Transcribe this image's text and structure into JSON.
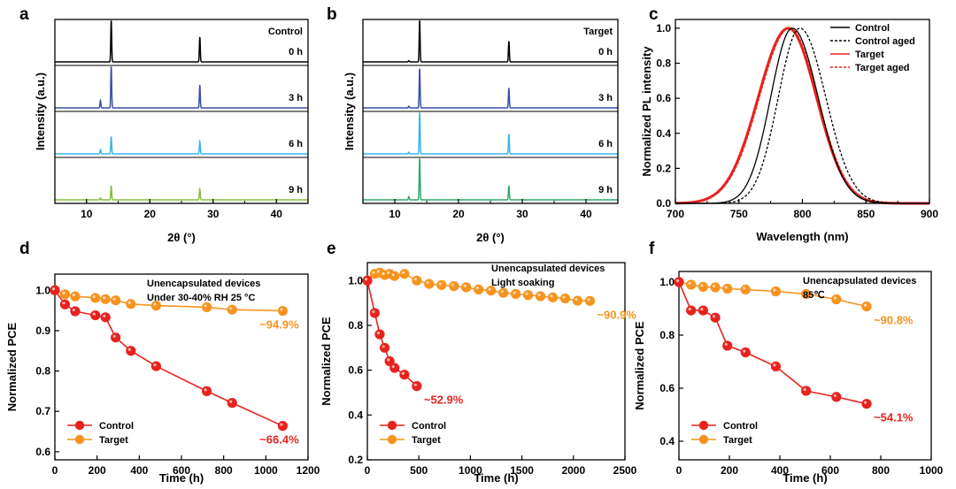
{
  "colors": {
    "axis": "#000000",
    "control_red": "#e8221f",
    "target_orange": "#f7931e",
    "xrd_0h": "#000000",
    "xrd_3h_control": "#3c4fa0",
    "xrd_3h_target": "#3a4fa8",
    "xrd_6h": "#35b5ea",
    "xrd_9h_control": "#86bd3b",
    "xrd_9h_target": "#2fa76a"
  },
  "chart_data": [
    {
      "id": "a",
      "panel_label": "a",
      "type": "line",
      "subtype": "stacked-xrd",
      "title": "Control",
      "xlabel": "2θ (°)",
      "ylabel": "Intensity (a.u.)",
      "xlim": [
        5,
        45
      ],
      "xticks": [
        10,
        20,
        30,
        40
      ],
      "series": [
        {
          "name": "0 h",
          "color": "#000000",
          "peaks": [
            [
              13.9,
              1.0
            ],
            [
              27.9,
              0.6
            ]
          ]
        },
        {
          "name": "3 h",
          "color": "#3c4fa0",
          "peaks": [
            [
              12.2,
              0.18
            ],
            [
              13.9,
              1.0
            ],
            [
              27.9,
              0.55
            ]
          ]
        },
        {
          "name": "6 h",
          "color": "#35b5ea",
          "peaks": [
            [
              12.2,
              0.1
            ],
            [
              13.9,
              0.42
            ],
            [
              27.9,
              0.3
            ]
          ]
        },
        {
          "name": "9 h",
          "color": "#86bd3b",
          "peaks": [
            [
              12.2,
              0.05
            ],
            [
              13.9,
              0.34
            ],
            [
              27.9,
              0.26
            ]
          ]
        }
      ]
    },
    {
      "id": "b",
      "panel_label": "b",
      "type": "line",
      "subtype": "stacked-xrd",
      "title": "Target",
      "xlabel": "2θ (°)",
      "ylabel": "Intensity (a.u.)",
      "xlim": [
        5,
        45
      ],
      "xticks": [
        10,
        20,
        30,
        40
      ],
      "series": [
        {
          "name": "0 h",
          "color": "#000000",
          "peaks": [
            [
              12.2,
              0.03
            ],
            [
              13.9,
              1.0
            ],
            [
              27.9,
              0.5
            ]
          ]
        },
        {
          "name": "3 h",
          "color": "#3a4fa8",
          "peaks": [
            [
              12.2,
              0.04
            ],
            [
              13.9,
              0.95
            ],
            [
              27.9,
              0.48
            ]
          ]
        },
        {
          "name": "6 h",
          "color": "#35b5ea",
          "peaks": [
            [
              12.2,
              0.04
            ],
            [
              13.9,
              1.0
            ],
            [
              27.9,
              0.48
            ]
          ]
        },
        {
          "name": "9 h",
          "color": "#2fa76a",
          "peaks": [
            [
              12.2,
              0.08
            ],
            [
              13.9,
              1.0
            ],
            [
              27.9,
              0.34
            ]
          ]
        }
      ]
    },
    {
      "id": "c",
      "panel_label": "c",
      "type": "line",
      "xlabel": "Wavelength (nm)",
      "ylabel": "Normalized PL intensity",
      "xlim": [
        700,
        900
      ],
      "ylim": [
        0,
        1.05
      ],
      "xticks": [
        700,
        750,
        800,
        850,
        900
      ],
      "yticks": [
        "0.0",
        "0.2",
        "0.4",
        "0.6",
        "0.8",
        "1.0"
      ],
      "legend": "top-right",
      "series": [
        {
          "name": "Control",
          "color": "#000000",
          "style": "solid",
          "center": 792,
          "fwhm_left": 20,
          "fwhm_right": 24
        },
        {
          "name": "Control aged",
          "color": "#000000",
          "style": "dashed",
          "center": 798,
          "fwhm_left": 20,
          "fwhm_right": 24
        },
        {
          "name": "Target",
          "color": "#e8221f",
          "style": "solid-thick",
          "center": 789,
          "fwhm_left": 28,
          "fwhm_right": 26
        },
        {
          "name": "Target aged",
          "color": "#e8221f",
          "style": "dashed",
          "center": 790,
          "fwhm_left": 28,
          "fwhm_right": 26
        }
      ]
    },
    {
      "id": "d",
      "panel_label": "d",
      "type": "line",
      "xlabel": "Time (h)",
      "ylabel": "Normalized PCE",
      "xlim": [
        0,
        1200
      ],
      "ylim": [
        0.58,
        1.04
      ],
      "xticks": [
        "0",
        "200",
        "400",
        "600",
        "800",
        "1000",
        "1200"
      ],
      "yticks": [
        "0.6",
        "0.7",
        "0.8",
        "0.9",
        "1.0"
      ],
      "annotation": [
        "Unencapsulated devices",
        "Under 30-40% RH 25 °C"
      ],
      "legend": "bottom-left",
      "series": [
        {
          "name": "Control",
          "color": "#e8221f",
          "final_label": "~66.4%",
          "x": [
            0,
            48,
            96,
            192,
            240,
            288,
            360,
            480,
            720,
            840,
            1080
          ],
          "y": [
            1.0,
            0.965,
            0.948,
            0.938,
            0.933,
            0.883,
            0.85,
            0.812,
            0.75,
            0.721,
            0.664
          ]
        },
        {
          "name": "Target",
          "color": "#f7931e",
          "final_label": "~94.9%",
          "x": [
            0,
            48,
            96,
            192,
            240,
            288,
            360,
            480,
            720,
            840,
            1080
          ],
          "y": [
            1.0,
            0.99,
            0.985,
            0.981,
            0.978,
            0.975,
            0.966,
            0.962,
            0.958,
            0.952,
            0.949
          ]
        }
      ]
    },
    {
      "id": "e",
      "panel_label": "e",
      "type": "line",
      "xlabel": "Time (h)",
      "ylabel": "Normalized PCE",
      "xlim": [
        0,
        2500
      ],
      "ylim": [
        0.2,
        1.08
      ],
      "xticks": [
        "0",
        "500",
        "1000",
        "1500",
        "2000",
        "2500"
      ],
      "yticks": [
        "0.2",
        "0.4",
        "0.6",
        "0.8",
        "1.0"
      ],
      "annotation": [
        "Unencapsulated devices",
        "Light soaking"
      ],
      "legend": "bottom-left",
      "series": [
        {
          "name": "Control",
          "color": "#e8221f",
          "final_label": "~52.9%",
          "x": [
            0,
            72,
            120,
            168,
            216,
            264,
            360,
            480
          ],
          "y": [
            1.0,
            0.855,
            0.76,
            0.7,
            0.64,
            0.61,
            0.58,
            0.529
          ]
        },
        {
          "name": "Target",
          "color": "#f7931e",
          "final_label": "~90.9%",
          "x": [
            0,
            72,
            120,
            168,
            216,
            264,
            360,
            480,
            600,
            720,
            840,
            960,
            1080,
            1200,
            1320,
            1440,
            1560,
            1680,
            1800,
            1920,
            2040,
            2160
          ],
          "y": [
            1.0,
            1.03,
            1.035,
            1.025,
            1.03,
            1.02,
            1.03,
            1.0,
            0.985,
            0.98,
            0.975,
            0.97,
            0.96,
            0.955,
            0.945,
            0.94,
            0.935,
            0.93,
            0.925,
            0.92,
            0.91,
            0.909
          ]
        }
      ]
    },
    {
      "id": "f",
      "panel_label": "f",
      "type": "line",
      "xlabel": "Time (h)",
      "ylabel": "Normalized PCE",
      "xlim": [
        0,
        1000
      ],
      "ylim": [
        0.33,
        1.04
      ],
      "xticks": [
        "0",
        "200",
        "400",
        "600",
        "800",
        "1000"
      ],
      "yticks": [
        "0.4",
        "0.6",
        "0.8",
        "1.0"
      ],
      "annotation": [
        "Unencapsulated devices",
        "85℃"
      ],
      "legend": "bottom-left",
      "series": [
        {
          "name": "Control",
          "color": "#e8221f",
          "final_label": "~54.1%",
          "x": [
            0,
            48,
            96,
            144,
            192,
            264,
            384,
            504,
            624,
            744
          ],
          "y": [
            1.0,
            0.893,
            0.893,
            0.866,
            0.76,
            0.735,
            0.682,
            0.59,
            0.567,
            0.541
          ]
        },
        {
          "name": "Target",
          "color": "#f7931e",
          "final_label": "~90.8%",
          "x": [
            0,
            48,
            96,
            144,
            192,
            264,
            384,
            504,
            624,
            744
          ],
          "y": [
            1.0,
            0.99,
            0.982,
            0.98,
            0.975,
            0.972,
            0.965,
            0.955,
            0.935,
            0.908
          ]
        }
      ]
    }
  ]
}
